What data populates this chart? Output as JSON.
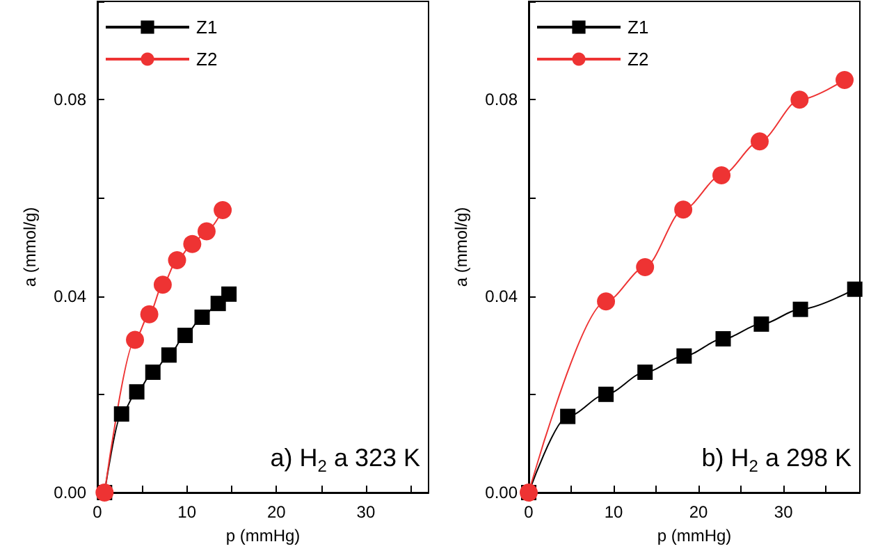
{
  "chart_data": [
    {
      "type": "line",
      "xlabel": "p (mmHg)",
      "ylabel": "a (mmol/g)",
      "annotations": [
        "a) H$_{2}$ a 323 K"
      ],
      "legend": "top left",
      "grid": false,
      "line_style": "solid",
      "xlim": [
        0,
        37
      ],
      "xticks": [
        0,
        {
          "value": 5,
          "label": null
        },
        10,
        {
          "value": 15,
          "label": null
        },
        20,
        {
          "value": 25,
          "label": null
        },
        30,
        {
          "value": 35,
          "label": null
        }
      ],
      "ylim": [
        0,
        0.1
      ],
      "yticks": [
        {
          "value": 0,
          "label": "0.00"
        },
        {
          "value": 0.02,
          "label": null
        },
        {
          "value": 0.04,
          "label": "0.04"
        },
        {
          "value": 0.06,
          "label": null
        },
        {
          "value": 0.08,
          "label": "0.08"
        },
        {
          "value": 0.1,
          "label": null
        }
      ],
      "series": [
        {
          "name": "Z1",
          "color": "#000000",
          "marker": "square",
          "x": [
            0.8,
            2.7,
            4.4,
            6.2,
            8.0,
            9.8,
            11.7,
            13.5,
            14.7
          ],
          "values": [
            0,
            0.016,
            0.0205,
            0.0245,
            0.028,
            0.032,
            0.0357,
            0.0385,
            0.0404
          ]
        },
        {
          "name": "Z2",
          "color": "#ee3333",
          "marker": "circle",
          "x": [
            0.8,
            4.2,
            5.8,
            7.3,
            8.9,
            10.6,
            12.2,
            14.0
          ],
          "values": [
            0,
            0.0311,
            0.0363,
            0.0423,
            0.0473,
            0.0506,
            0.0532,
            0.0575
          ]
        }
      ]
    },
    {
      "type": "line",
      "xlabel": "p (mmHg)",
      "ylabel": "a (mmol/g)",
      "annotations": [
        "b) H$_{2}$ a 298 K"
      ],
      "legend": "top left",
      "grid": false,
      "line_style": "solid",
      "xlim": [
        0,
        39
      ],
      "xticks": [
        0,
        {
          "value": 5,
          "label": null
        },
        10,
        {
          "value": 15,
          "label": null
        },
        20,
        {
          "value": 25,
          "label": null
        },
        30,
        {
          "value": 35,
          "label": null
        }
      ],
      "ylim": [
        0,
        0.1
      ],
      "yticks": [
        {
          "value": 0,
          "label": "0.00"
        },
        {
          "value": 0.02,
          "label": null
        },
        {
          "value": 0.04,
          "label": "0.04"
        },
        {
          "value": 0.06,
          "label": null
        },
        {
          "value": 0.08,
          "label": "0.08"
        },
        {
          "value": 0.1,
          "label": null
        }
      ],
      "series": [
        {
          "name": "Z1",
          "color": "#000000",
          "marker": "square",
          "x": [
            0,
            4.6,
            9.1,
            13.7,
            18.3,
            22.9,
            27.4,
            32.0,
            38.4
          ],
          "values": [
            0,
            0.0155,
            0.02,
            0.0245,
            0.0278,
            0.0313,
            0.0343,
            0.0373,
            0.0414
          ]
        },
        {
          "name": "Z2",
          "color": "#ee3333",
          "marker": "circle",
          "x": [
            0,
            9.1,
            13.7,
            18.2,
            22.7,
            27.2,
            31.9,
            37.2
          ],
          "values": [
            0,
            0.0389,
            0.0459,
            0.0576,
            0.0646,
            0.0715,
            0.08,
            0.084
          ]
        }
      ]
    }
  ]
}
